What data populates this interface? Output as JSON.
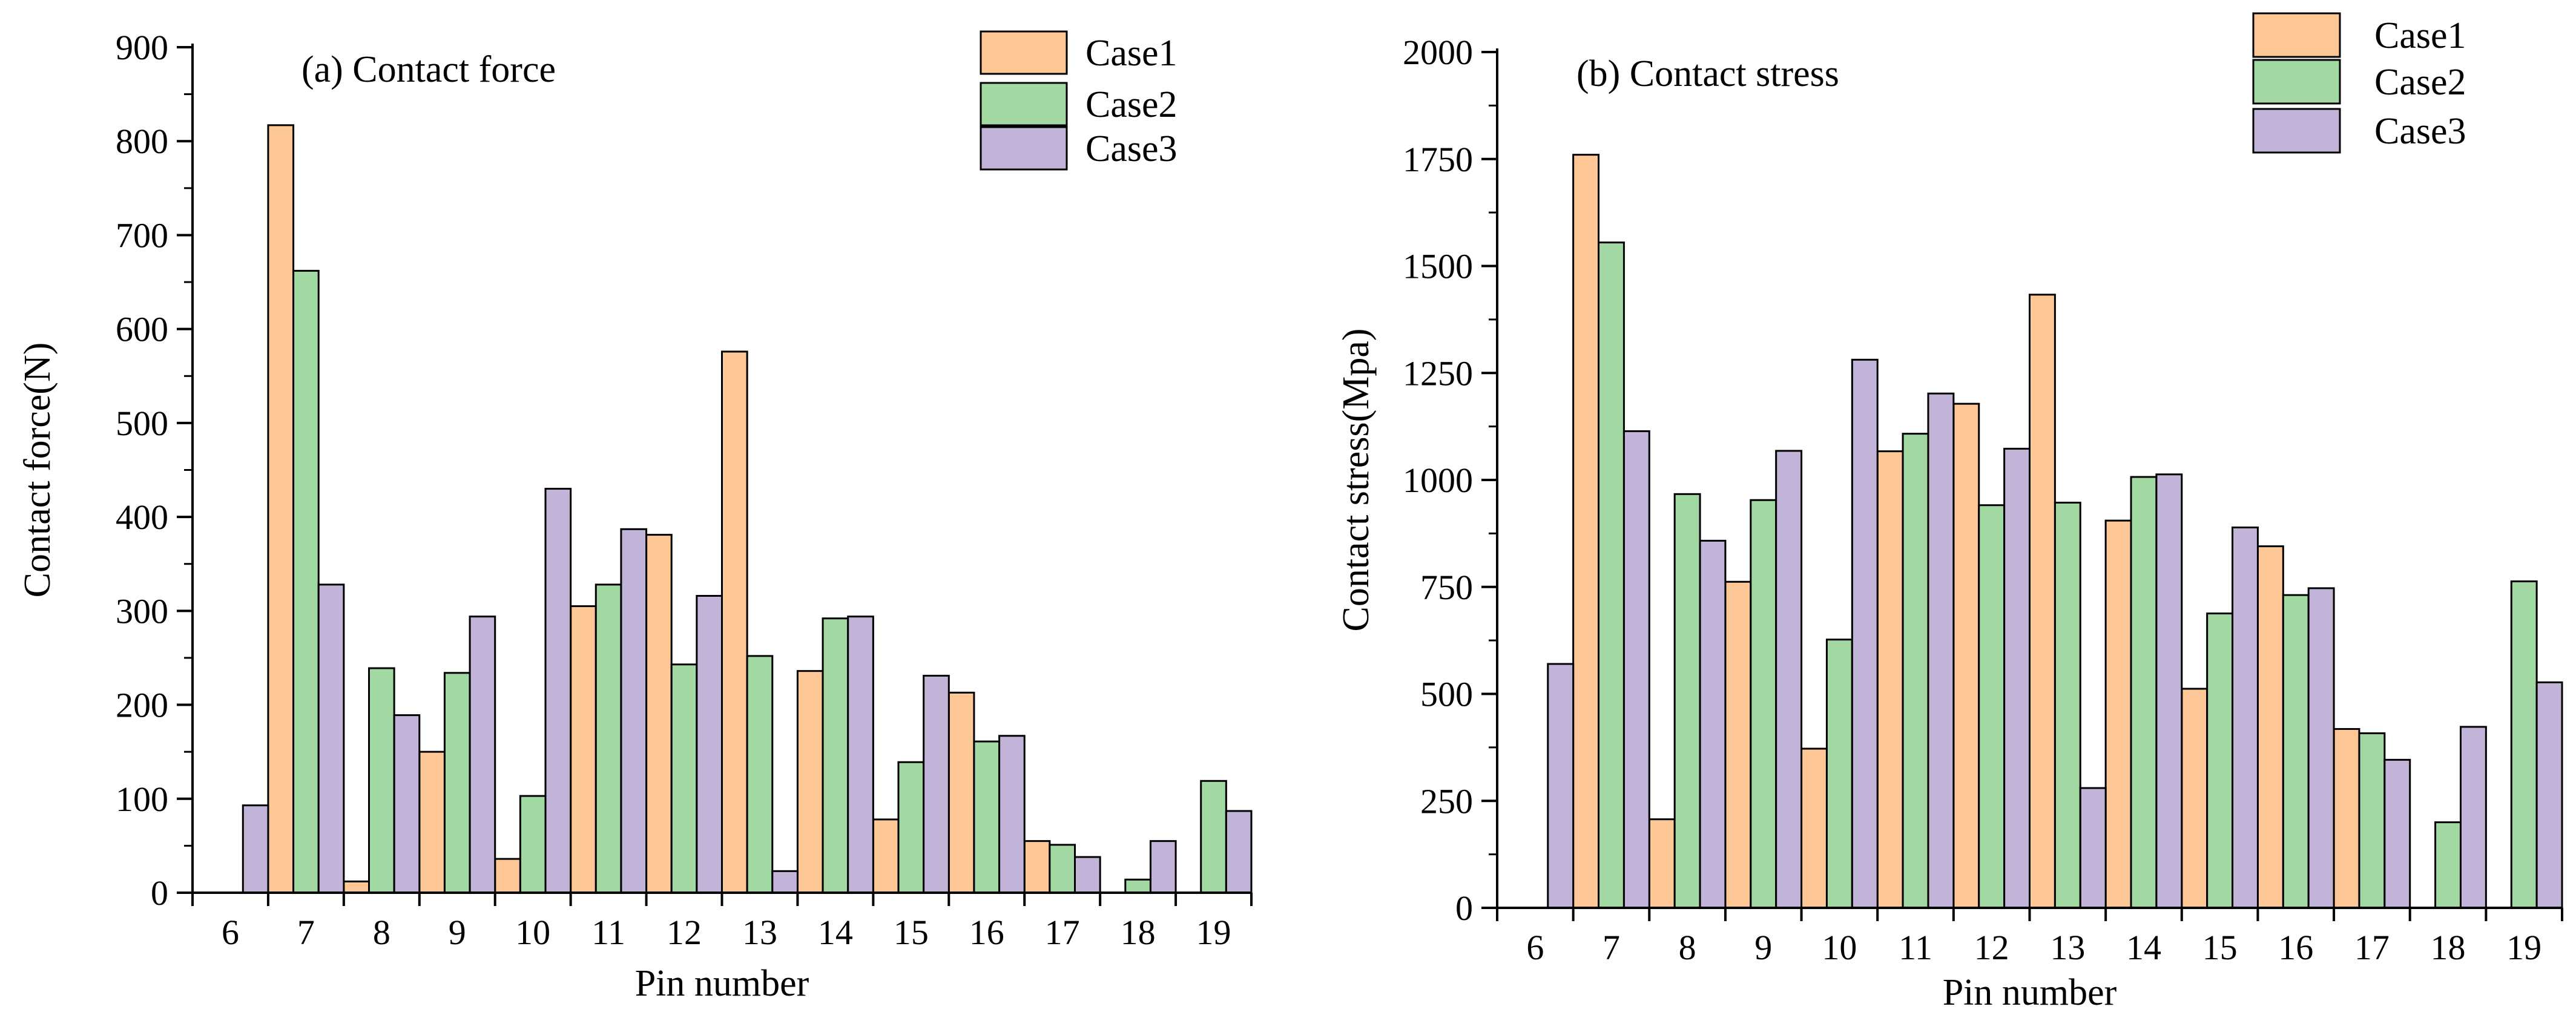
{
  "chart_data": [
    {
      "type": "bar",
      "title": "(a) Contact force",
      "xlabel": "Pin number",
      "ylabel": "Contact force(N)",
      "ylim": [
        0,
        900
      ],
      "yticks": [
        0,
        100,
        200,
        300,
        400,
        500,
        600,
        700,
        800,
        900
      ],
      "categories": [
        "6",
        "7",
        "8",
        "9",
        "10",
        "11",
        "12",
        "13",
        "14",
        "15",
        "16",
        "17",
        "18",
        "19"
      ],
      "legend_position": "top-right",
      "series": [
        {
          "name": "Case1",
          "color": "#FDC896",
          "values": [
            0,
            817,
            12,
            150,
            36,
            305,
            381,
            576,
            236,
            78,
            213,
            55,
            0,
            0
          ]
        },
        {
          "name": "Case2",
          "color": "#A2D8A1",
          "values": [
            0,
            662,
            239,
            234,
            103,
            328,
            243,
            252,
            292,
            139,
            161,
            51,
            14,
            119
          ]
        },
        {
          "name": "Case3",
          "color": "#C2B3D8",
          "values": [
            93,
            328,
            189,
            294,
            430,
            387,
            316,
            23,
            294,
            231,
            167,
            38,
            55,
            87
          ]
        }
      ]
    },
    {
      "type": "bar",
      "title": "(b) Contact stress",
      "xlabel": "Pin number",
      "ylabel": "Contact stress(Mpa)",
      "ylim": [
        0,
        2000
      ],
      "yticks": [
        0,
        250,
        500,
        750,
        1000,
        1250,
        1500,
        1750,
        2000
      ],
      "categories": [
        "6",
        "7",
        "8",
        "9",
        "10",
        "11",
        "12",
        "13",
        "14",
        "15",
        "16",
        "17",
        "18",
        "19"
      ],
      "legend_position": "top-right",
      "series": [
        {
          "name": "Case1",
          "color": "#FDC896",
          "values": [
            0,
            1760,
            207,
            762,
            372,
            1067,
            1178,
            1433,
            905,
            512,
            845,
            418,
            0,
            0
          ]
        },
        {
          "name": "Case2",
          "color": "#A2D8A1",
          "values": [
            0,
            1555,
            967,
            953,
            627,
            1108,
            941,
            947,
            1007,
            688,
            731,
            408,
            200,
            763
          ]
        },
        {
          "name": "Case3",
          "color": "#C2B3D8",
          "values": [
            570,
            1114,
            858,
            1068,
            1281,
            1202,
            1073,
            280,
            1013,
            889,
            747,
            346,
            423,
            527
          ]
        }
      ]
    }
  ]
}
